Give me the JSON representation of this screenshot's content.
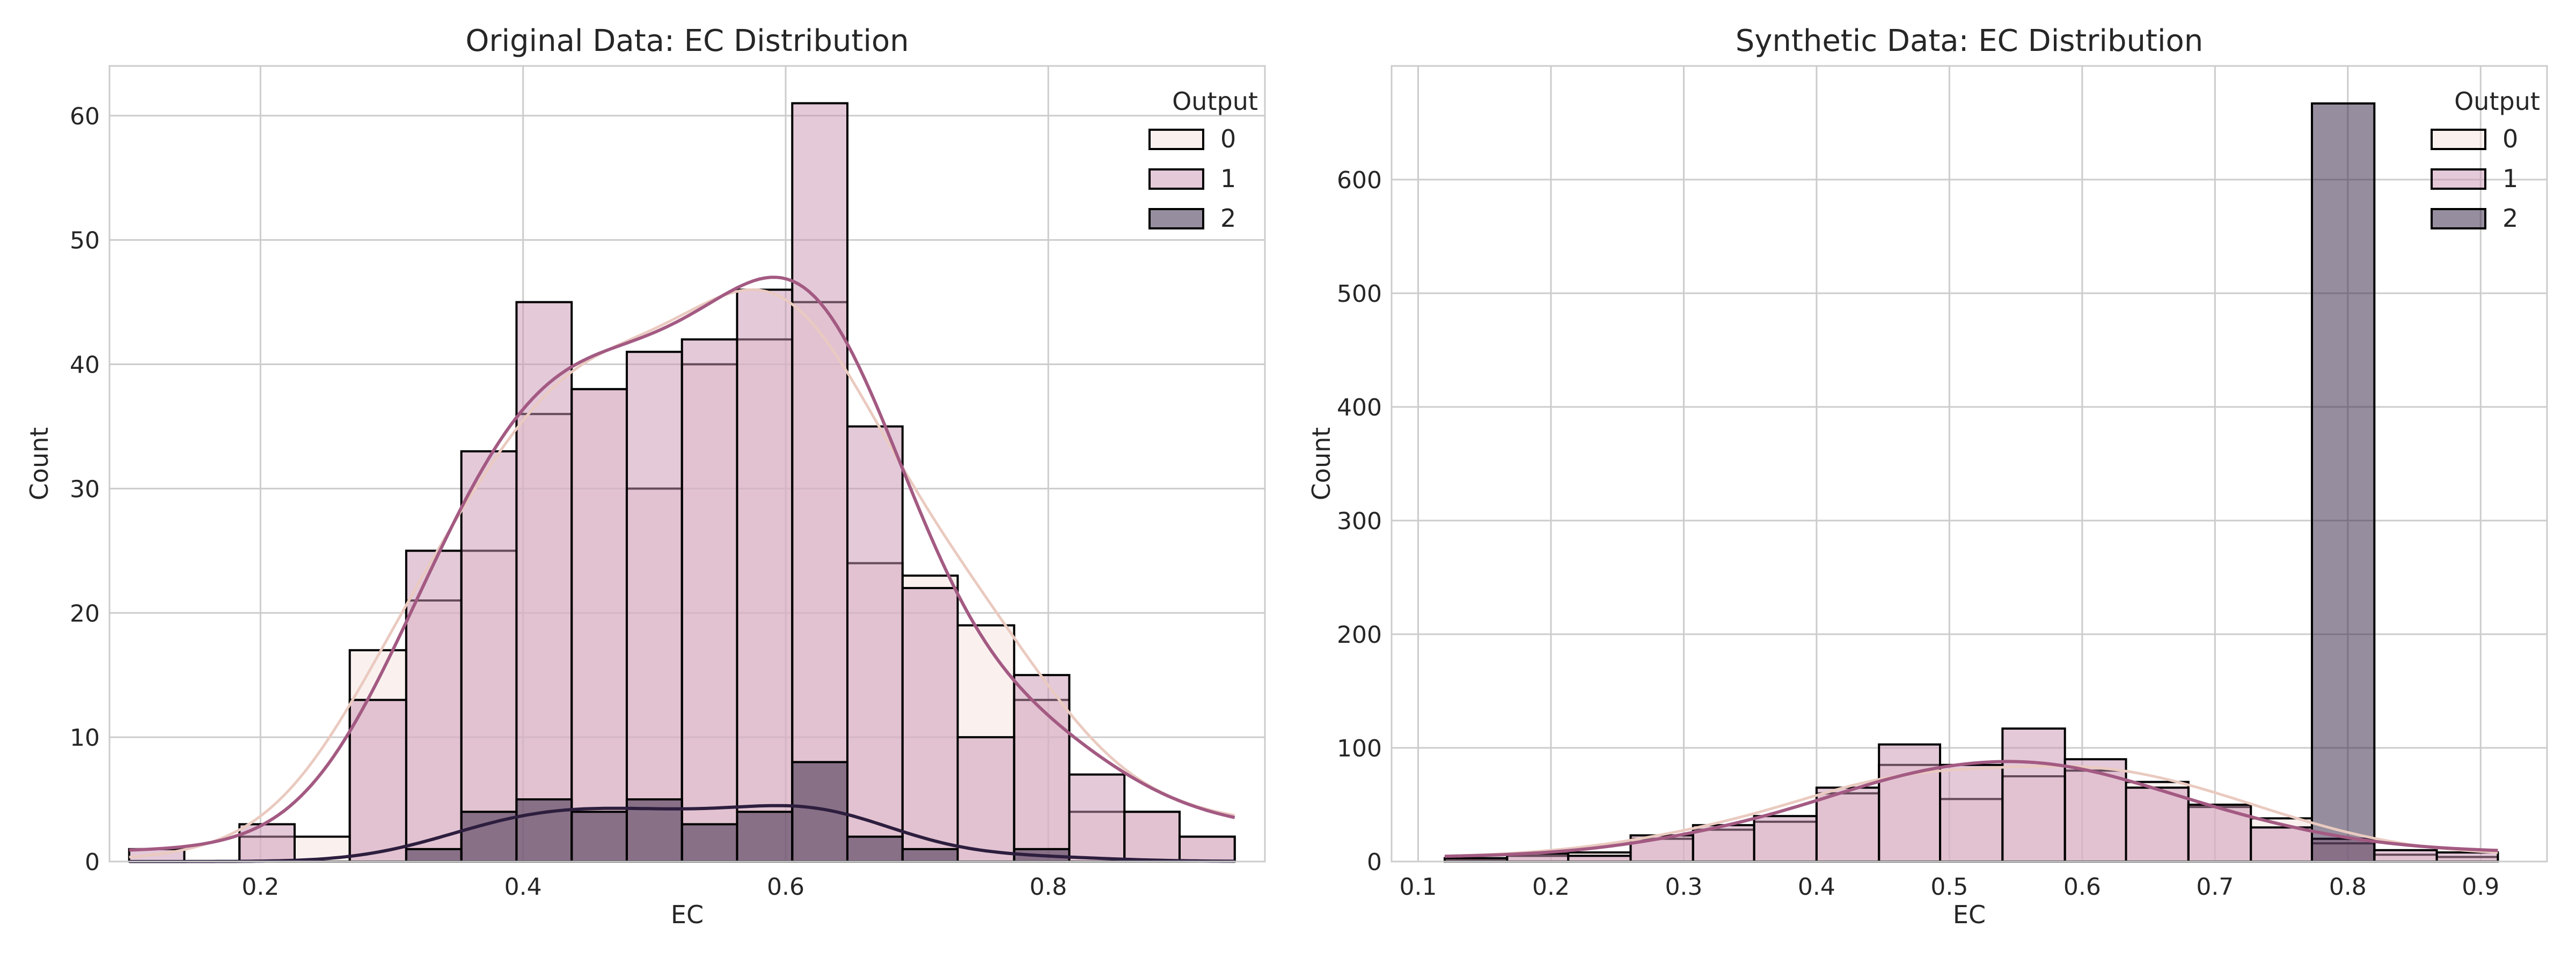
{
  "chart_data": [
    {
      "type": "histogram",
      "title": "Original Data: EC Distribution",
      "xlabel": "EC",
      "ylabel": "Count",
      "xlim": [
        0.085,
        0.965
      ],
      "ylim": [
        0,
        64
      ],
      "xticks": [
        0.2,
        0.4,
        0.6,
        0.8
      ],
      "xtick_labels": [
        "0.2",
        "0.4",
        "0.6",
        "0.8"
      ],
      "yticks": [
        0,
        10,
        20,
        30,
        40,
        50,
        60
      ],
      "ytick_labels": [
        "0",
        "10",
        "20",
        "30",
        "40",
        "50",
        "60"
      ],
      "bin_edges": [
        0.1,
        0.142,
        0.184,
        0.226,
        0.268,
        0.311,
        0.353,
        0.395,
        0.437,
        0.479,
        0.521,
        0.563,
        0.605,
        0.647,
        0.689,
        0.731,
        0.774,
        0.816,
        0.858,
        0.9,
        0.942
      ],
      "grid": true,
      "legend": {
        "title": "Output",
        "position": "top-right"
      },
      "series": [
        {
          "name": "0",
          "color": "#f5e3df",
          "values": [
            0,
            0,
            2,
            2,
            17,
            21,
            25,
            36,
            38,
            30,
            40,
            42,
            45,
            24,
            23,
            19,
            13,
            4,
            4,
            2
          ]
        },
        {
          "name": "1",
          "color": "#c993b3",
          "values": [
            1,
            0,
            3,
            0,
            13,
            25,
            33,
            45,
            38,
            41,
            42,
            46,
            61,
            35,
            22,
            10,
            15,
            7,
            4,
            2
          ]
        },
        {
          "name": "2",
          "color": "#2d1e3e",
          "values": [
            0,
            0,
            0,
            0,
            0,
            1,
            4,
            5,
            4,
            5,
            3,
            4,
            8,
            2,
            1,
            0,
            1,
            0,
            0,
            0
          ]
        }
      ],
      "kde_peaks": {
        "0": 46,
        "1": 47,
        "2": 4.5
      }
    },
    {
      "type": "histogram",
      "title": "Synthetic Data: EC Distribution",
      "xlabel": "EC",
      "ylabel": "Count",
      "xlim": [
        0.08,
        0.95
      ],
      "ylim": [
        0,
        700
      ],
      "xticks": [
        0.1,
        0.2,
        0.3,
        0.4,
        0.5,
        0.6,
        0.7,
        0.8,
        0.9
      ],
      "xtick_labels": [
        "0.1",
        "0.2",
        "0.3",
        "0.4",
        "0.5",
        "0.6",
        "0.7",
        "0.8",
        "0.9"
      ],
      "yticks": [
        0,
        100,
        200,
        300,
        400,
        500,
        600
      ],
      "ytick_labels": [
        "0",
        "100",
        "200",
        "300",
        "400",
        "500",
        "600"
      ],
      "bin_edges": [
        0.12,
        0.167,
        0.213,
        0.26,
        0.307,
        0.353,
        0.4,
        0.447,
        0.493,
        0.54,
        0.587,
        0.633,
        0.68,
        0.727,
        0.773,
        0.82,
        0.867,
        0.913
      ],
      "grid": true,
      "legend": {
        "title": "Output",
        "position": "top-right"
      },
      "series": [
        {
          "name": "0",
          "color": "#f5e3df",
          "values": [
            2,
            5,
            8,
            20,
            28,
            35,
            60,
            85,
            55,
            75,
            80,
            70,
            48,
            38,
            16,
            6,
            4
          ]
        },
        {
          "name": "1",
          "color": "#c993b3",
          "values": [
            3,
            7,
            5,
            23,
            32,
            40,
            65,
            103,
            85,
            117,
            90,
            65,
            50,
            30,
            20,
            10,
            8
          ]
        },
        {
          "name": "2",
          "color": "#2d1e3e",
          "values": [
            0,
            0,
            0,
            0,
            0,
            0,
            0,
            0,
            0,
            0,
            0,
            0,
            0,
            0,
            667,
            0,
            0
          ]
        }
      ],
      "kde_peaks": {
        "0": 84,
        "1": 88,
        "2": 0
      }
    }
  ]
}
